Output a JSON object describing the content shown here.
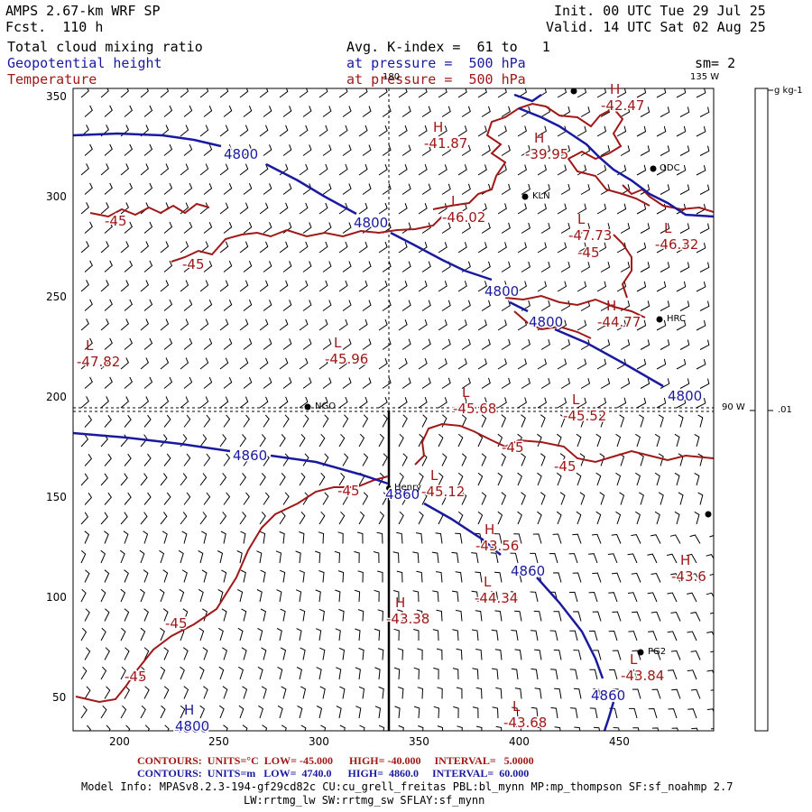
{
  "header": {
    "model": "AMPS 2.67-km WRF SP",
    "forecast": "Fcst.  110 h",
    "init": "Init. 00 UTC Tue 29 Jul 25",
    "valid": "Valid. 14 UTC Sat 02 Aug 25",
    "field1": "Total cloud mixing ratio",
    "field2": "Geopotential height",
    "field3": "Temperature",
    "avg": "Avg. K-index =  61 to   1",
    "pressure1": "at pressure =  500 hPa",
    "pressure2": "at pressure =  500 hPa",
    "smooth": "sm= 2"
  },
  "colors": {
    "height": "#1a1aa0",
    "temperature": "#a01818",
    "barbs": "#000000"
  },
  "map": {
    "x_ticks": [
      "200",
      "250",
      "300",
      "350",
      "400",
      "450"
    ],
    "y_ticks": [
      "350",
      "300",
      "250",
      "200",
      "150",
      "100",
      "50"
    ],
    "longitude_labels": [
      "180",
      "135 W",
      "90 W"
    ],
    "stations": [
      "NGO",
      "Henry",
      "KLN",
      "HRC",
      "PG2",
      "ODC"
    ],
    "height_labels": [
      "4800",
      "4800",
      "4800",
      "4800",
      "4800",
      "4860",
      "4860",
      "4860",
      "4860",
      "4800"
    ],
    "temp_labels": [
      "-45",
      "-45",
      "-45",
      "-45",
      "-45",
      "-45",
      "-45",
      "-45"
    ],
    "extrema": [
      {
        "type": "H",
        "value": "-41.87"
      },
      {
        "type": "H",
        "value": "-39.95"
      },
      {
        "type": "H",
        "value": "-42.47"
      },
      {
        "type": "L",
        "value": "-46.02"
      },
      {
        "type": "L",
        "value": "-47.73"
      },
      {
        "type": "L",
        "value": "-46.32"
      },
      {
        "type": "H",
        "value": "-44.77"
      },
      {
        "type": "L",
        "value": "-47.82"
      },
      {
        "type": "L",
        "value": "-45.96"
      },
      {
        "type": "L",
        "value": "-45.68"
      },
      {
        "type": "L",
        "value": "-45.52"
      },
      {
        "type": "L",
        "value": "-45.12"
      },
      {
        "type": "H",
        "value": "-43.56"
      },
      {
        "type": "L",
        "value": "-44.34"
      },
      {
        "type": "H",
        "value": "-43.38"
      },
      {
        "type": "H",
        "value": "-43.6"
      },
      {
        "type": "L",
        "value": "-43.84"
      },
      {
        "type": "L",
        "value": "-43.68"
      },
      {
        "type": "H",
        "value": "4800"
      }
    ]
  },
  "colorbar": {
    "unit": "g kg-1",
    "value": ".01"
  },
  "footer": {
    "temp_line": "CONTOURS:  UNITS=°C  LOW= -45.000      HIGH= -40.000     INTERVAL=   5.0000",
    "height_line": "CONTOURS:  UNITS=m   LOW=  4740.0      HIGH=  4860.0     INTERVAL=  60.000",
    "model_info": "Model Info: MPASv8.2.3-194-gf29cd82c CU:cu_grell_freitas PBL:bl_mynn MP:mp_thompson SF:sf_noahmp 2.7",
    "model_info2": "LW:rrtmg_lw SW:rrtmg_sw SFLAY:sf_mynn"
  }
}
